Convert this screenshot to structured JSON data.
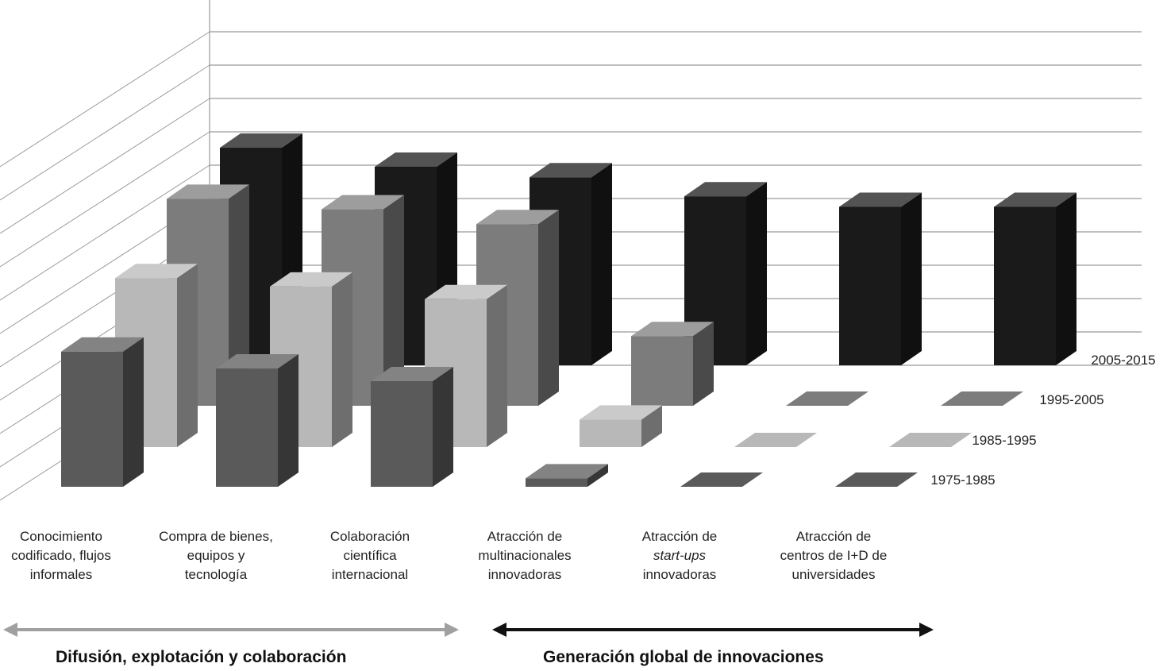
{
  "chart_data": {
    "type": "bar",
    "categories": [
      [
        "Conocimiento",
        "codificado, flujos",
        "informales"
      ],
      [
        "Compra de bienes,",
        "equipos y",
        "tecnología"
      ],
      [
        "Colaboración",
        "científica",
        "internacional"
      ],
      [
        "Atracción de",
        "multinacionales",
        "innovadoras"
      ],
      [
        "Atracción de",
        "start-ups",
        "innovadoras"
      ],
      [
        "Atracción de",
        "centros de I+D de",
        "universidades"
      ]
    ],
    "italic_line": {
      "category": 4,
      "line": 1
    },
    "series": [
      {
        "name": "1975-1985",
        "values": [
          6.4,
          5.6,
          5.0,
          0.4,
          0,
          0
        ]
      },
      {
        "name": "1985-1995",
        "values": [
          8.0,
          7.6,
          7.0,
          1.3,
          0,
          0
        ]
      },
      {
        "name": "1995-2005",
        "values": [
          9.8,
          9.3,
          8.6,
          3.3,
          0,
          0
        ]
      },
      {
        "name": "2005-2015",
        "values": [
          10.3,
          9.4,
          8.9,
          8.0,
          7.5,
          7.5
        ]
      }
    ],
    "series_colors": [
      "#5a5a5a",
      "#b8b8b8",
      "#7c7c7c",
      "#1a1a1a"
    ],
    "ylim": [
      0,
      10.5
    ],
    "grid": true,
    "legend": "series labels at right end of each row",
    "groups": [
      {
        "label": "Difusión, explotación y colaboración",
        "arrow_color": "#a0a0a0"
      },
      {
        "label": "Generación global de innovaciones",
        "arrow_color": "#111111"
      }
    ]
  }
}
